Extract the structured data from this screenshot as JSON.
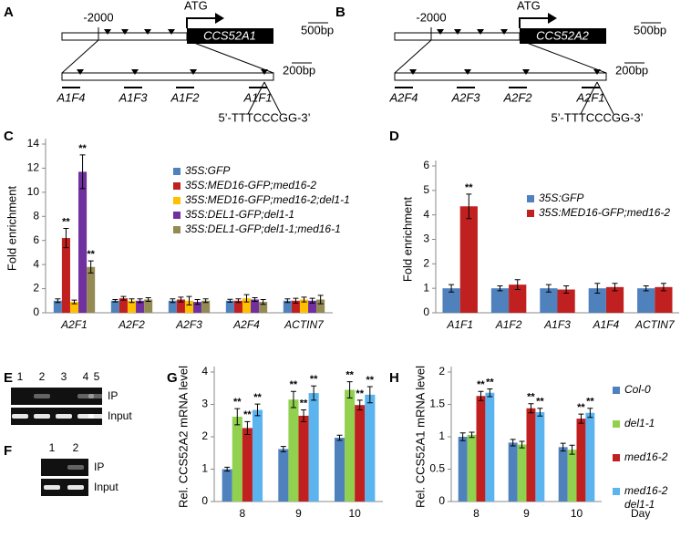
{
  "panel_labels": [
    "A",
    "B",
    "C",
    "D",
    "E",
    "F",
    "G",
    "H"
  ],
  "diagrams": [
    {
      "upstream": "-2000",
      "start": "ATG",
      "gene": "CCS52A1",
      "scale_top": "500bp",
      "scale_bottom": "200bp",
      "fragments": [
        "A1F4",
        "A1F3",
        "A1F2",
        "A1F1"
      ],
      "motif": "5’-TTTCCCGG-3’"
    },
    {
      "upstream": "-2000",
      "start": "ATG",
      "gene": "CCS52A2",
      "scale_top": "500bp",
      "scale_bottom": "200bp",
      "fragments": [
        "A2F4",
        "A2F3",
        "A2F2",
        "A2F1"
      ],
      "motif": "5’-TTTCCCGG-3’"
    }
  ],
  "gels": [
    {
      "lanes": [
        "1",
        "2",
        "3",
        "4",
        "5"
      ],
      "rows": [
        "IP",
        "Input"
      ]
    },
    {
      "lanes": [
        "1",
        "2"
      ],
      "rows": [
        "IP",
        "Input"
      ]
    }
  ],
  "chart_data": [
    {
      "type": "bar",
      "ylabel": "Fold enrichment",
      "legend": "upper right",
      "categories": [
        "A2F1",
        "A2F2",
        "A2F3",
        "A2F4",
        "ACTIN7"
      ],
      "ylim": [
        0,
        14
      ],
      "yticks": [
        0,
        2,
        4,
        6,
        8,
        10,
        12,
        14
      ],
      "series": [
        {
          "name": "35S:GFP",
          "color": "#4f81bd",
          "values": [
            1,
            1,
            1,
            1,
            1
          ],
          "errors": [
            0.15,
            0.1,
            0.15,
            0.12,
            0.15
          ],
          "significance": [
            null,
            null,
            null,
            null,
            null
          ]
        },
        {
          "name": "35S:MED16-GFP;med16-2",
          "color": "#c0201f",
          "values": [
            6.2,
            1.2,
            1.1,
            1.0,
            1.0
          ],
          "errors": [
            0.8,
            0.15,
            0.2,
            0.15,
            0.2
          ],
          "significance": [
            "**",
            null,
            null,
            null,
            null
          ]
        },
        {
          "name": "35S:MED16-GFP;med16-2;del1-1",
          "color": "#ffc000",
          "values": [
            0.9,
            1.0,
            1.0,
            1.2,
            1.1
          ],
          "errors": [
            0.15,
            0.15,
            0.35,
            0.3,
            0.2
          ],
          "significance": [
            null,
            null,
            null,
            null,
            null
          ]
        },
        {
          "name": "35S:DEL1-GFP;del1-1",
          "color": "#7030a0",
          "values": [
            11.7,
            1.0,
            0.9,
            1.1,
            1.0
          ],
          "errors": [
            1.4,
            0.15,
            0.2,
            0.15,
            0.2
          ],
          "significance": [
            "**",
            null,
            null,
            null,
            null
          ]
        },
        {
          "name": "35S:DEL1-GFP;del1-1;med16-1",
          "color": "#948a54",
          "values": [
            3.8,
            1.1,
            1.0,
            0.9,
            1.1
          ],
          "errors": [
            0.5,
            0.15,
            0.15,
            0.2,
            0.35
          ],
          "significance": [
            "**",
            null,
            null,
            null,
            null
          ]
        }
      ]
    },
    {
      "type": "bar",
      "ylabel": "Fold enrichment",
      "legend": "upper right",
      "categories": [
        "A1F1",
        "A1F2",
        "A1F3",
        "A1F4",
        "ACTIN7"
      ],
      "ylim": [
        0,
        6
      ],
      "yticks": [
        0,
        1,
        2,
        3,
        4,
        5,
        6
      ],
      "series": [
        {
          "name": "35S:GFP",
          "color": "#4f81bd",
          "values": [
            1,
            1,
            1,
            1,
            1
          ],
          "errors": [
            0.15,
            0.1,
            0.15,
            0.2,
            0.1
          ],
          "significance": [
            null,
            null,
            null,
            null,
            null
          ]
        },
        {
          "name": "35S:MED16-GFP;med16-2",
          "color": "#c0201f",
          "values": [
            4.35,
            1.15,
            0.95,
            1.05,
            1.05
          ],
          "errors": [
            0.5,
            0.2,
            0.15,
            0.15,
            0.15
          ],
          "significance": [
            "**",
            null,
            null,
            null,
            null
          ]
        }
      ]
    },
    {
      "type": "bar",
      "ylabel": "Rel. CCS52A2 mRNA level",
      "categories": [
        "8",
        "9",
        "10"
      ],
      "ylim": [
        0,
        4
      ],
      "yticks": [
        0,
        1,
        2,
        3,
        4
      ],
      "series": [
        {
          "color": "#4f81bd",
          "values": [
            1.0,
            1.62,
            1.97
          ],
          "errors": [
            0.06,
            0.08,
            0.08
          ],
          "significance": [
            null,
            null,
            null
          ]
        },
        {
          "color": "#92d050",
          "values": [
            2.62,
            3.15,
            3.45
          ],
          "errors": [
            0.25,
            0.25,
            0.25
          ],
          "significance": [
            "**",
            "**",
            "**"
          ]
        },
        {
          "color": "#c0201f",
          "values": [
            2.27,
            2.65,
            2.98
          ],
          "errors": [
            0.2,
            0.18,
            0.15
          ],
          "significance": [
            "**",
            "**",
            "**"
          ]
        },
        {
          "color": "#5bb4ee",
          "values": [
            2.83,
            3.35,
            3.3
          ],
          "errors": [
            0.18,
            0.22,
            0.25
          ],
          "significance": [
            "**",
            "**",
            "**"
          ]
        }
      ]
    },
    {
      "type": "bar",
      "ylabel": "Rel. CCS52A1 mRNA level",
      "xlabel": "Day",
      "legend": "right",
      "categories": [
        "8",
        "9",
        "10"
      ],
      "ylim": [
        0,
        2
      ],
      "yticks": [
        0,
        0.5,
        1,
        1.5,
        2
      ],
      "series": [
        {
          "name": "Col-0",
          "color": "#4f81bd",
          "values": [
            1.0,
            0.91,
            0.84
          ],
          "errors": [
            0.06,
            0.05,
            0.06
          ],
          "significance": [
            null,
            null,
            null
          ]
        },
        {
          "name": "del1-1",
          "color": "#92d050",
          "values": [
            1.03,
            0.88,
            0.8
          ],
          "errors": [
            0.04,
            0.05,
            0.07
          ],
          "significance": [
            null,
            null,
            null
          ]
        },
        {
          "name": "med16-2",
          "color": "#c0201f",
          "values": [
            1.63,
            1.44,
            1.28
          ],
          "errors": [
            0.07,
            0.07,
            0.07
          ],
          "significance": [
            "**",
            "**",
            "**"
          ]
        },
        {
          "name": "med16-2 del1-1",
          "color": "#5bb4ee",
          "values": [
            1.68,
            1.38,
            1.37
          ],
          "errors": [
            0.06,
            0.06,
            0.07
          ],
          "significance": [
            "**",
            "**",
            "**"
          ]
        }
      ]
    }
  ]
}
